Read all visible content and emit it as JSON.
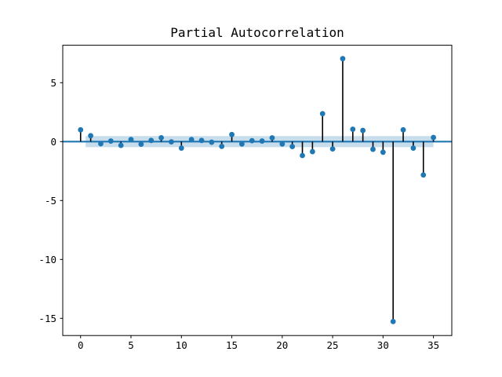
{
  "chart_data": {
    "type": "stem",
    "title": "Partial Autocorrelation",
    "xlabel": "",
    "ylabel": "",
    "x": [
      0,
      1,
      2,
      3,
      4,
      5,
      6,
      7,
      8,
      9,
      10,
      11,
      12,
      13,
      14,
      15,
      16,
      17,
      18,
      19,
      20,
      21,
      22,
      23,
      24,
      25,
      26,
      27,
      28,
      29,
      30,
      31,
      32,
      33,
      34,
      35
    ],
    "values": [
      1.0,
      0.5,
      -0.18,
      0.05,
      -0.32,
      0.18,
      -0.22,
      0.1,
      0.33,
      -0.02,
      -0.55,
      0.18,
      0.1,
      -0.05,
      -0.4,
      0.6,
      -0.2,
      0.08,
      0.05,
      0.32,
      -0.2,
      -0.42,
      -1.18,
      -0.85,
      2.37,
      -0.62,
      7.04,
      1.05,
      0.95,
      -0.65,
      -0.9,
      -15.27,
      1.0,
      -0.55,
      -2.83,
      0.35
    ],
    "xticks": [
      0,
      5,
      10,
      15,
      20,
      25,
      30,
      35
    ],
    "yticks": [
      5,
      0,
      -5,
      -10,
      -15
    ],
    "xlim": [
      -1.77,
      36.82
    ],
    "ylim": [
      -16.46,
      8.18
    ],
    "zero_line": 0,
    "confidence_band": {
      "x_start": 0.5,
      "x_end": 35,
      "lower": -0.47,
      "upper": 0.47
    },
    "grid": false,
    "legend": null,
    "colors": {
      "marker": "#1f77b4",
      "zero_line": "#1f77b4",
      "band": "#1f77b4",
      "band_opacity": "0.25",
      "stem": "#000000",
      "frame": "#000000",
      "background": "#ffffff"
    }
  }
}
